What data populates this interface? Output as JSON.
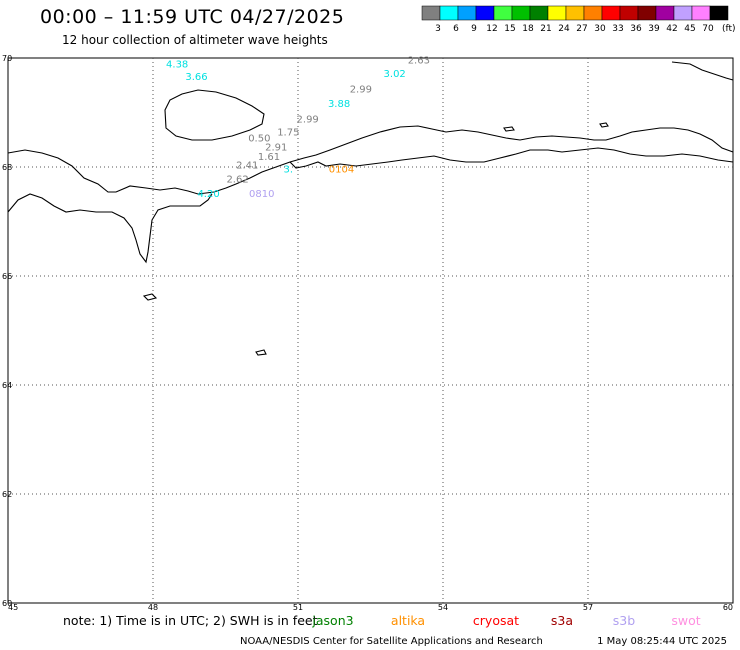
{
  "header": {
    "title": "00:00 – 11:59 UTC 04/27/2025",
    "subtitle": "12 hour collection of altimeter wave heights"
  },
  "legend": {
    "unit": "(ft)",
    "bins": [
      {
        "label": "3",
        "color": "#808080"
      },
      {
        "label": "6",
        "color": "#00ffff"
      },
      {
        "label": "9",
        "color": "#00a0ff"
      },
      {
        "label": "12",
        "color": "#0000ff"
      },
      {
        "label": "15",
        "color": "#40ff40"
      },
      {
        "label": "18",
        "color": "#00c000"
      },
      {
        "label": "21",
        "color": "#008000"
      },
      {
        "label": "24",
        "color": "#ffff00"
      },
      {
        "label": "27",
        "color": "#ffc000"
      },
      {
        "label": "30",
        "color": "#ff8000"
      },
      {
        "label": "33",
        "color": "#ff0000"
      },
      {
        "label": "36",
        "color": "#c00000"
      },
      {
        "label": "39",
        "color": "#800000"
      },
      {
        "label": "42",
        "color": "#a000a0"
      },
      {
        "label": "45",
        "color": "#c0a0ff"
      },
      {
        "label": "70",
        "color": "#ff80ff"
      },
      {
        "label": "",
        "color": "#000000"
      }
    ]
  },
  "map": {
    "lon_range": [
      45,
      60
    ],
    "lat_range": [
      60,
      70
    ],
    "lon_ticks": [
      "45",
      "48",
      "51",
      "54",
      "57",
      "60"
    ],
    "lat_ticks": [
      "70",
      "68",
      "66",
      "64",
      "62",
      "60"
    ],
    "grid": true
  },
  "observations": [
    {
      "text": "4.38",
      "color": "#00e0e0",
      "lon": 48.5,
      "lat": 69.83
    },
    {
      "text": "3.66",
      "color": "#00e0e0",
      "lon": 48.9,
      "lat": 69.6
    },
    {
      "text": "2.63",
      "color": "#808080",
      "lon": 53.5,
      "lat": 69.9
    },
    {
      "text": "3.02",
      "color": "#00e0e0",
      "lon": 53.0,
      "lat": 69.65
    },
    {
      "text": "2.99",
      "color": "#808080",
      "lon": 52.3,
      "lat": 69.37
    },
    {
      "text": "3.88",
      "color": "#00e0e0",
      "lon": 51.85,
      "lat": 69.1
    },
    {
      "text": "2.99",
      "color": "#808080",
      "lon": 51.2,
      "lat": 68.82
    },
    {
      "text": "1.75",
      "color": "#808080",
      "lon": 50.8,
      "lat": 68.58
    },
    {
      "text": "0.50",
      "color": "#808080",
      "lon": 50.2,
      "lat": 68.47
    },
    {
      "text": "2.91",
      "color": "#808080",
      "lon": 50.55,
      "lat": 68.3
    },
    {
      "text": "1.61",
      "color": "#808080",
      "lon": 50.4,
      "lat": 68.13
    },
    {
      "text": "2.41",
      "color": "#808080",
      "lon": 49.95,
      "lat": 67.97
    },
    {
      "text": "3.",
      "color": "#00e0e0",
      "lon": 50.8,
      "lat": 67.9
    },
    {
      "text": "2.62",
      "color": "#808080",
      "lon": 49.75,
      "lat": 67.72
    },
    {
      "text": "4.20",
      "color": "#00e0e0",
      "lon": 49.15,
      "lat": 67.45
    },
    {
      "text": "0810",
      "color": "#b0a0f0",
      "lon": 50.25,
      "lat": 67.45
    },
    {
      "text": "0104",
      "color": "#ff9000",
      "lon": 51.9,
      "lat": 67.9
    }
  ],
  "footer": {
    "note": "note: 1) Time is in UTC; 2) SWH is in feet",
    "satellites": [
      {
        "name": "jason3",
        "color": "#008000"
      },
      {
        "name": "altika",
        "color": "#ff9000"
      },
      {
        "name": "cryosat",
        "color": "#ff0000"
      },
      {
        "name": "s3a",
        "color": "#a00000"
      },
      {
        "name": "s3b",
        "color": "#b0a0f0"
      },
      {
        "name": "swot",
        "color": "#ff90e0"
      }
    ],
    "credit": "NOAA/NESDIS Center for Satellite Applications and Research",
    "timestamp": "1 May 08:25:44 UTC 2025"
  }
}
